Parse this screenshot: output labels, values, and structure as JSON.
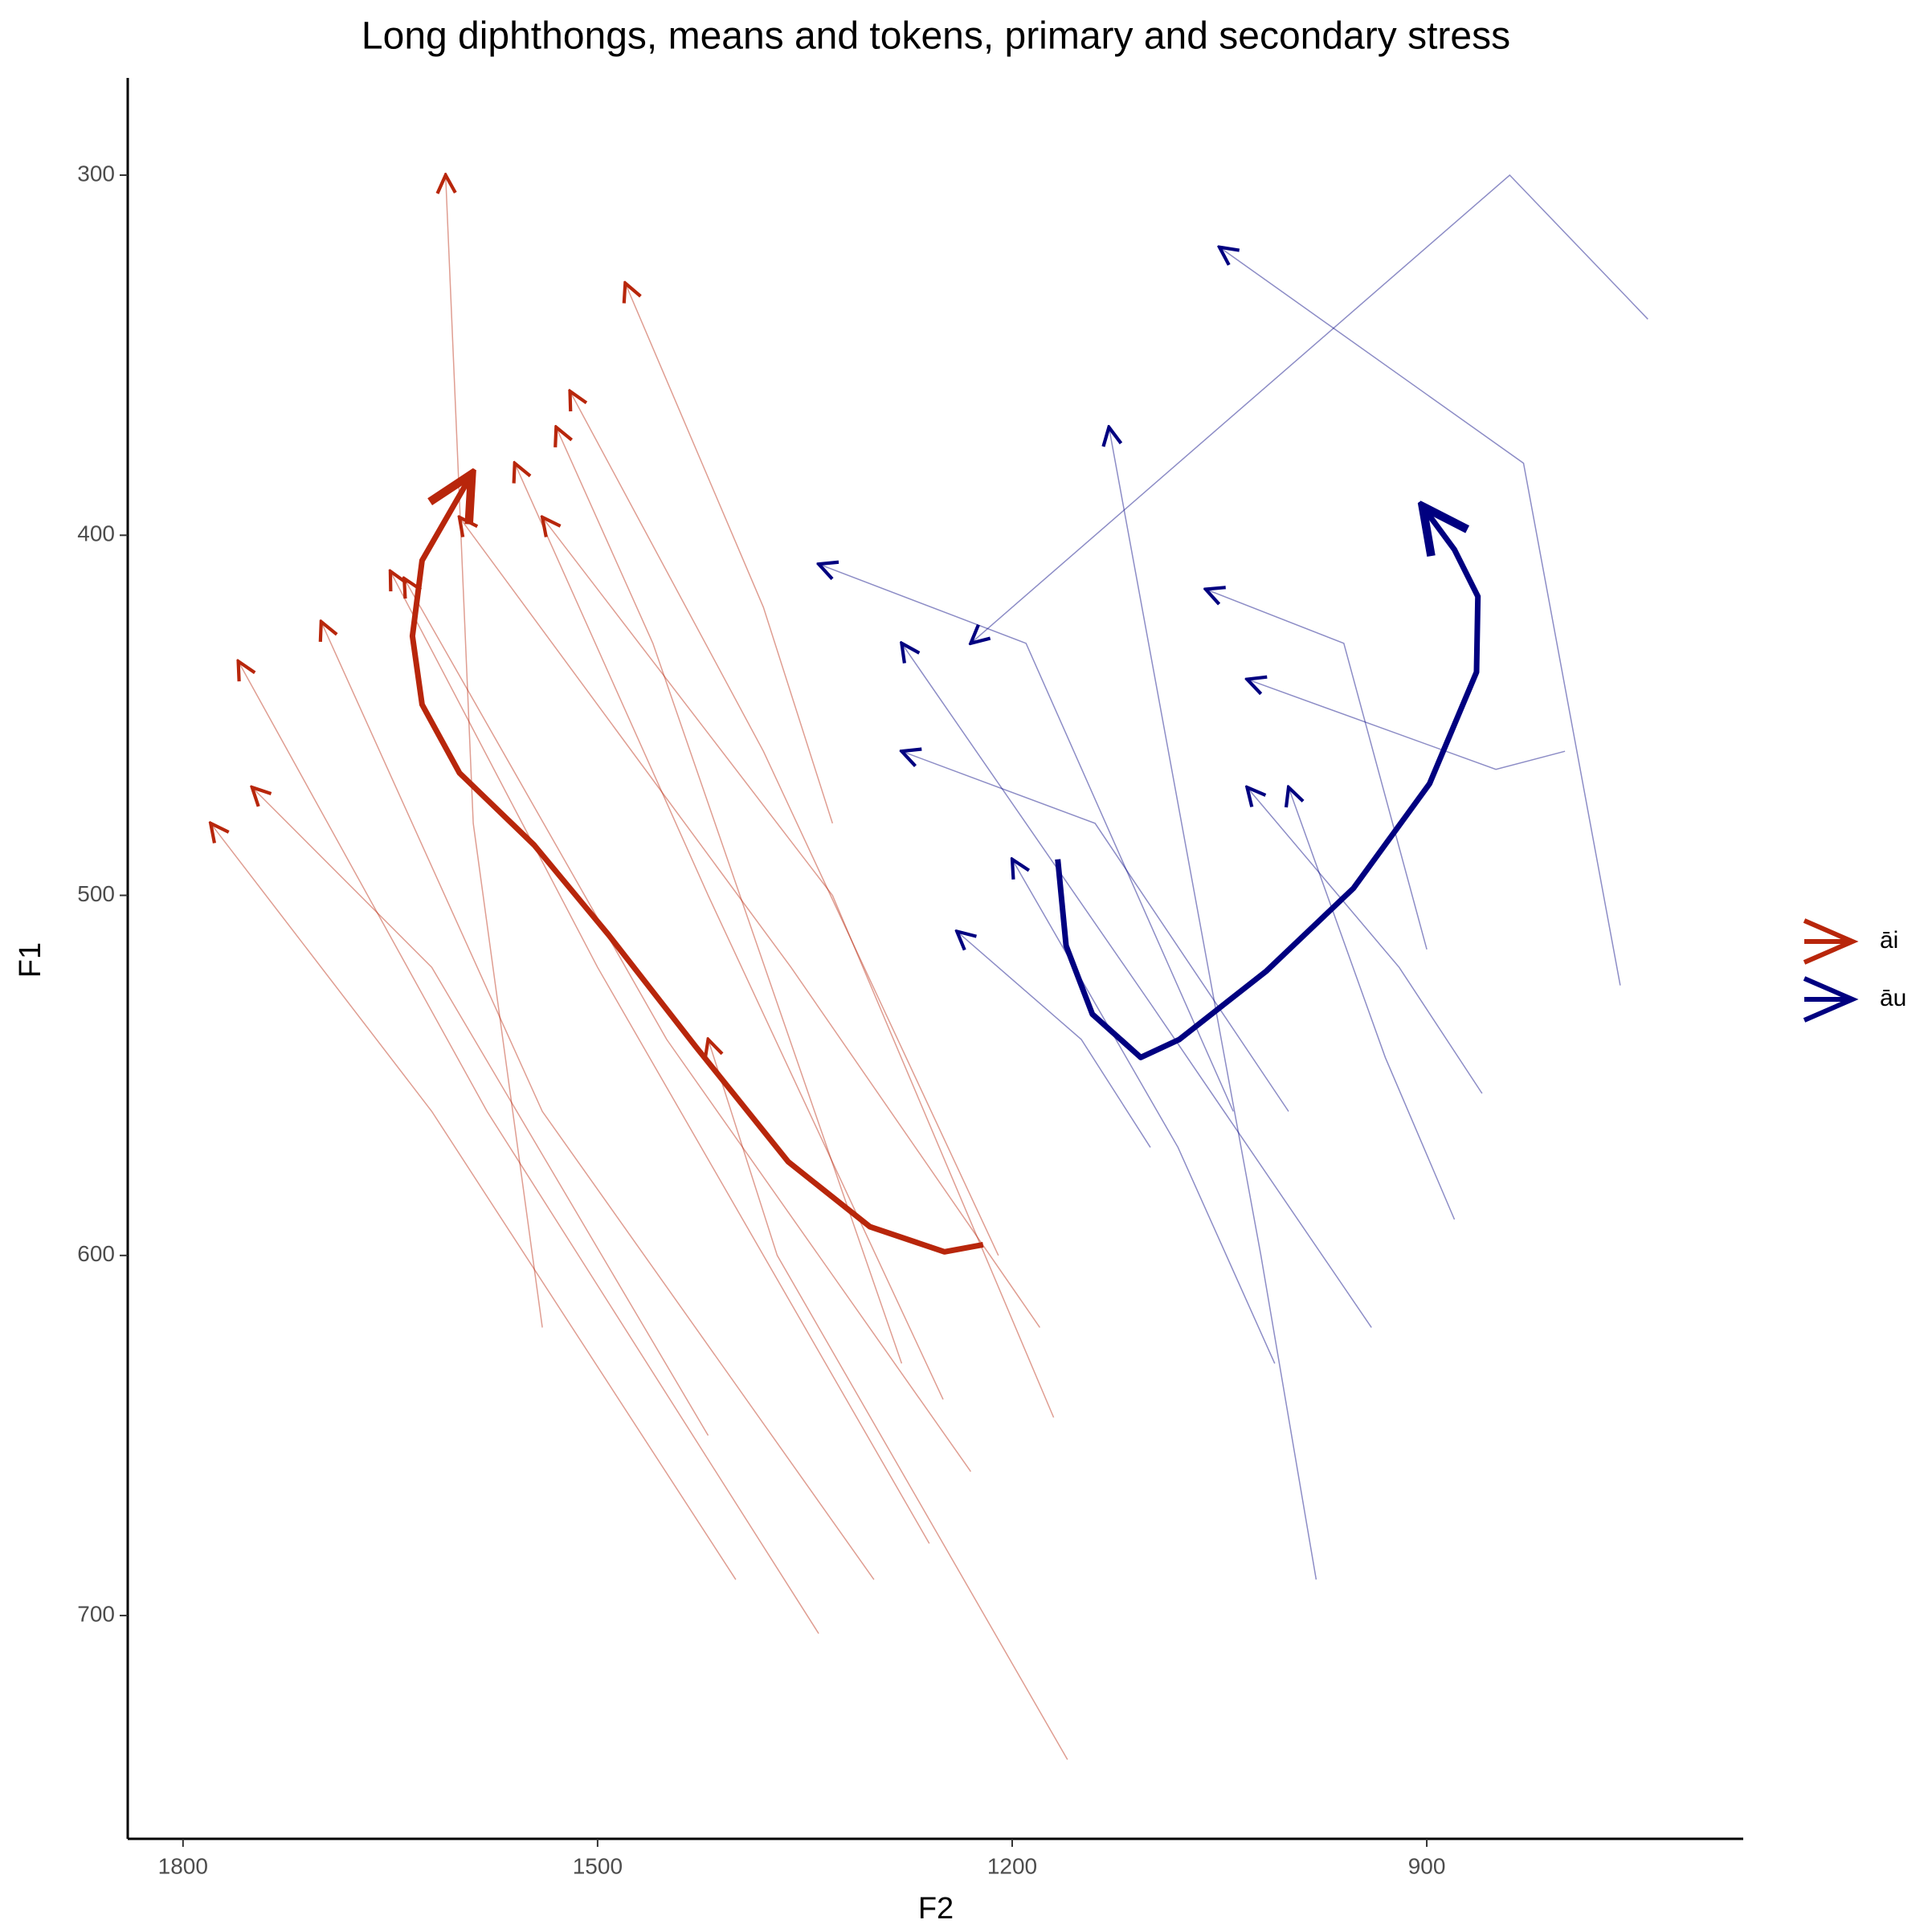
{
  "chart_data": {
    "type": "trajectory",
    "title": "Long diphthongs, means and tokens, primary and secondary stress",
    "x_label": "F2",
    "y_label": "F1",
    "xlim": [
      671,
      1840
    ],
    "ylim": [
      273,
      762
    ],
    "x_reversed": true,
    "y_reversed": true,
    "xticks": [
      1800,
      1500,
      1200,
      900
    ],
    "yticks": [
      300,
      400,
      500,
      600,
      700
    ],
    "grid": false,
    "legend_position": "right",
    "series": [
      {
        "name": "āi",
        "color": "#b8260b",
        "mean": {
          "x": [
            1221,
            1249,
            1303,
            1362,
            1429,
            1492,
            1546,
            1600,
            1627,
            1634,
            1627,
            1591
          ],
          "y": [
            597,
            599,
            592,
            574,
            542,
            511,
            486,
            466,
            447,
            428,
            407,
            383
          ]
        },
        "tokens": [
          {
            "x": [
              1180,
              1360,
              1600
            ],
            "y": [
              620,
              520,
              395
            ]
          },
          {
            "x": [
              1230,
              1450,
              1640
            ],
            "y": [
              660,
              540,
              412
            ]
          },
          {
            "x": [
              1300,
              1540,
              1700
            ],
            "y": [
              690,
              560,
              424
            ]
          },
          {
            "x": [
              1260,
              1500,
              1650
            ],
            "y": [
              680,
              520,
              410
            ]
          },
          {
            "x": [
              1340,
              1580,
              1760
            ],
            "y": [
              705,
              560,
              435
            ]
          },
          {
            "x": [
              1250,
              1420,
              1560
            ],
            "y": [
              640,
              500,
              380
            ]
          },
          {
            "x": [
              1210,
              1380,
              1520
            ],
            "y": [
              600,
              460,
              360
            ]
          },
          {
            "x": [
              1420,
              1620,
              1750
            ],
            "y": [
              650,
              520,
              470
            ]
          },
          {
            "x": [
              1160,
              1370,
              1420
            ],
            "y": [
              740,
              600,
              540
            ]
          },
          {
            "x": [
              1400,
              1620,
              1780
            ],
            "y": [
              690,
              560,
              480
            ]
          },
          {
            "x": [
              1330,
              1380,
              1480
            ],
            "y": [
              480,
              420,
              330
            ]
          },
          {
            "x": [
              1540,
              1590,
              1610
            ],
            "y": [
              620,
              480,
              300
            ]
          },
          {
            "x": [
              1280,
              1460,
              1530
            ],
            "y": [
              630,
              430,
              370
            ]
          },
          {
            "x": [
              1170,
              1330,
              1540
            ],
            "y": [
              645,
              500,
              395
            ]
          }
        ]
      },
      {
        "name": "āu",
        "color": "#000080",
        "mean": {
          "x": [
            1167,
            1161,
            1142,
            1107,
            1079,
            1016,
            953,
            898,
            864,
            863,
            880,
            903
          ],
          "y": [
            490,
            514,
            533,
            545,
            540,
            521,
            498,
            469,
            438,
            417,
            404,
            392
          ]
        },
        "tokens": [
          {
            "x": [
              1040,
              1190,
              1340
            ],
            "y": [
              560,
              430,
              408
            ]
          },
          {
            "x": [
              940,
              1100,
              1280
            ],
            "y": [
              620,
              530,
              430
            ]
          },
          {
            "x": [
              760,
              830,
              1050
            ],
            "y": [
              525,
              380,
              320
            ]
          },
          {
            "x": [
              980,
              1020,
              1130
            ],
            "y": [
              690,
              600,
              370
            ]
          },
          {
            "x": [
              1000,
              1140,
              1280
            ],
            "y": [
              560,
              480,
              460
            ]
          },
          {
            "x": [
              880,
              930,
              1000
            ],
            "y": [
              590,
              545,
              470
            ]
          },
          {
            "x": [
              860,
              920,
              1030
            ],
            "y": [
              555,
              520,
              470
            ]
          },
          {
            "x": [
              740,
              840,
              1230
            ],
            "y": [
              340,
              300,
              430
            ]
          },
          {
            "x": [
              1010,
              1080,
              1200
            ],
            "y": [
              630,
              570,
              490
            ]
          },
          {
            "x": [
              900,
              960,
              1060
            ],
            "y": [
              515,
              430,
              415
            ]
          },
          {
            "x": [
              800,
              850,
              1030
            ],
            "y": [
              460,
              465,
              440
            ]
          },
          {
            "x": [
              1100,
              1150,
              1240
            ],
            "y": [
              570,
              540,
              510
            ]
          }
        ]
      }
    ]
  }
}
